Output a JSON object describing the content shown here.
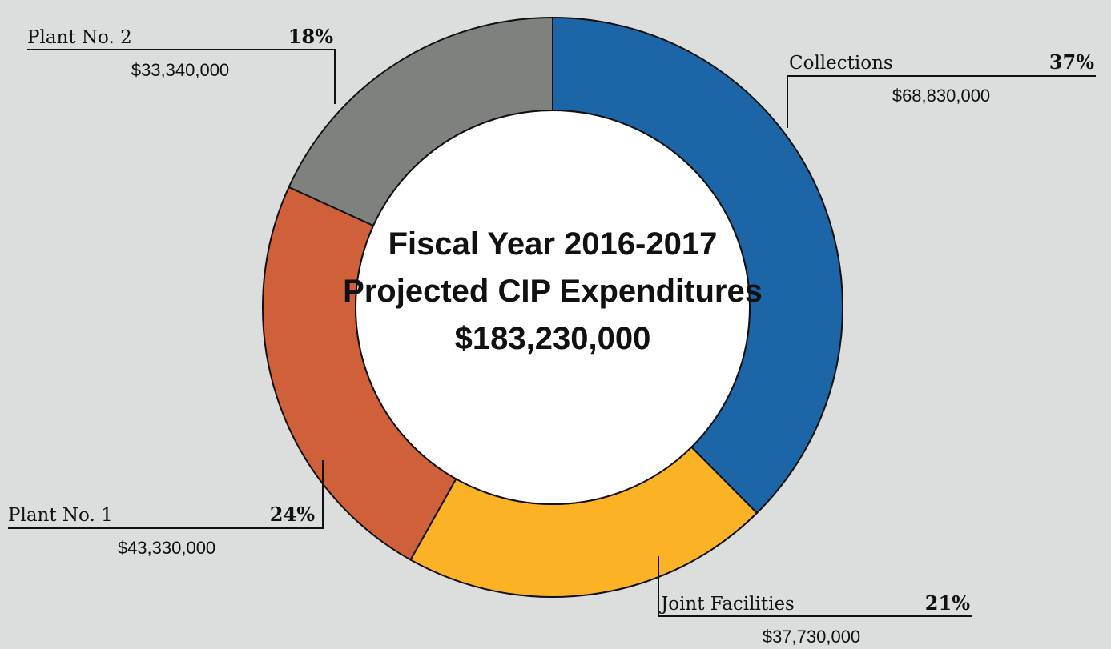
{
  "chart_data": {
    "type": "pie",
    "variant": "donut",
    "title_lines": [
      "Fiscal Year 2016-2017",
      "Projected CIP Expenditures",
      "$183,230,000"
    ],
    "total": 183230000,
    "slices": [
      {
        "name": "Collections",
        "value": 68830000,
        "percent_label": "37%",
        "amount_label": "$68,830,000",
        "color": "#1c66a8"
      },
      {
        "name": "Joint Facilities",
        "value": 37730000,
        "percent_label": "21%",
        "amount_label": "$37,730,000",
        "color": "#fbb224"
      },
      {
        "name": "Plant No. 1",
        "value": 43330000,
        "percent_label": "24%",
        "amount_label": "$43,330,000",
        "color": "#d0603a"
      },
      {
        "name": "Plant No. 2",
        "value": 33340000,
        "percent_label": "18%",
        "amount_label": "$33,340,000",
        "color": "#7f817f"
      }
    ]
  }
}
